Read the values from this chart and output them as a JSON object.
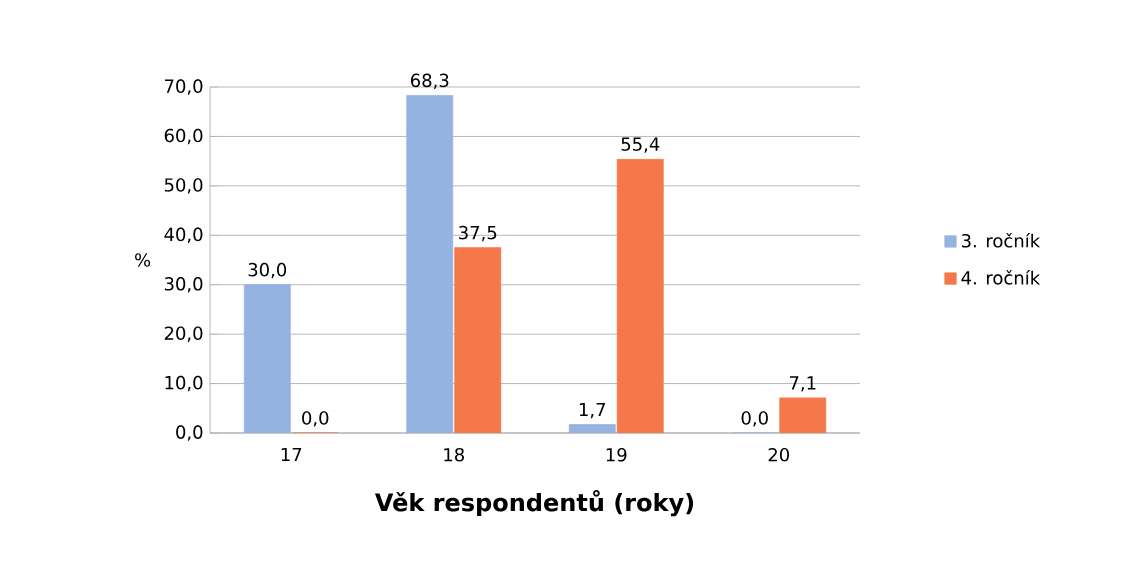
{
  "chart_data": {
    "type": "bar",
    "xlabel": "Věk respondentů (roky)",
    "ylabel": "%",
    "categories": [
      "17",
      "18",
      "19",
      "20"
    ],
    "series": [
      {
        "name": "3. ročník",
        "color": "#95b3e0",
        "values": [
          30.0,
          68.3,
          1.7,
          0.0
        ],
        "value_labels": [
          "30,0",
          "68,3",
          "1,7",
          "0,0"
        ]
      },
      {
        "name": "4. ročník",
        "color": "#f4784a",
        "values": [
          0.0,
          37.5,
          55.4,
          7.1
        ],
        "value_labels": [
          "0,0",
          "37,5",
          "55,4",
          "7,1"
        ]
      }
    ],
    "ylim": [
      0,
      70
    ],
    "yticks": [
      {
        "value": 0,
        "label": "0,0"
      },
      {
        "value": 10,
        "label": "10,0"
      },
      {
        "value": 20,
        "label": "20,0"
      },
      {
        "value": 30,
        "label": "30,0"
      },
      {
        "value": 40,
        "label": "40,0"
      },
      {
        "value": 50,
        "label": "50,0"
      },
      {
        "value": 60,
        "label": "60,0"
      },
      {
        "value": 70,
        "label": "70,0"
      }
    ],
    "grid": "y",
    "legend": "right"
  }
}
